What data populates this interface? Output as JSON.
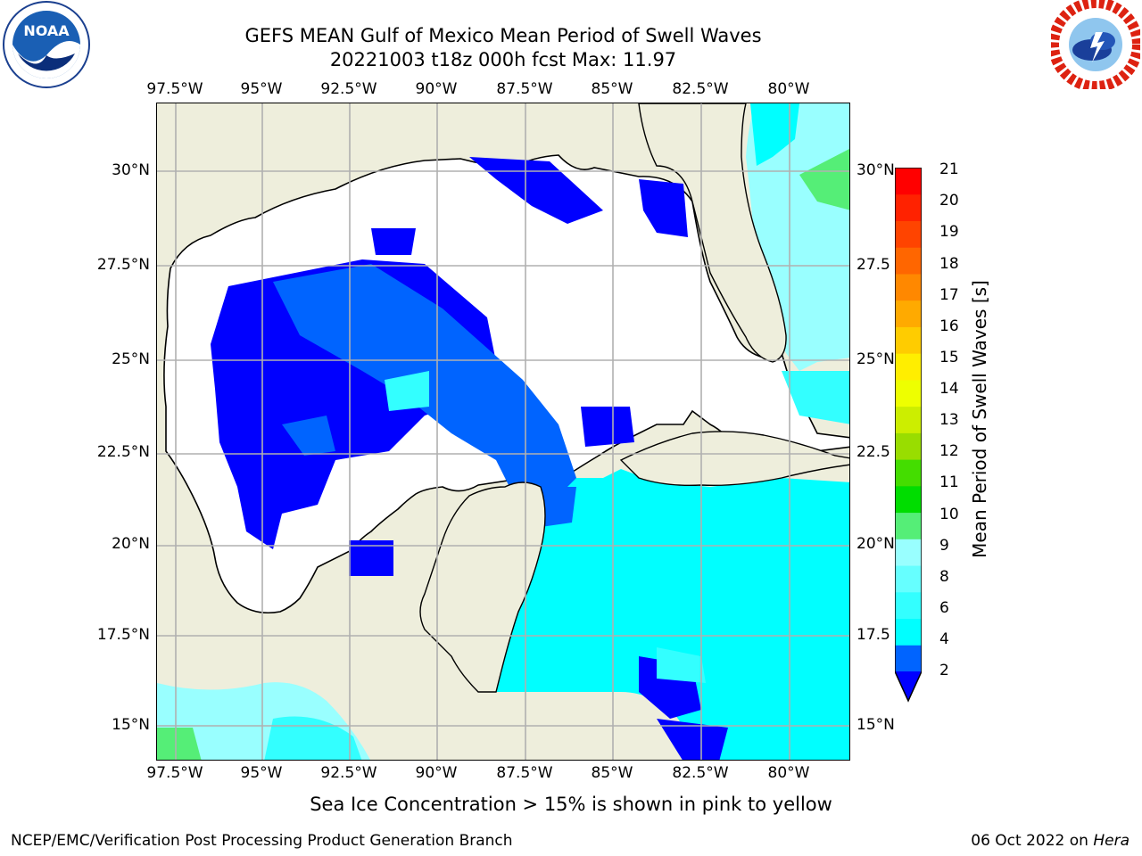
{
  "title": {
    "line1": "GEFS MEAN Gulf of Mexico Mean Period of Swell Waves",
    "line2": "20221003 t18z 000h fcst   Max: 11.97"
  },
  "logos": {
    "left": {
      "name": "NOAA",
      "text": "NOAA",
      "ring_text": "NATIONAL OCEANIC AND ATMOSPHERIC ADMINISTRATION · U.S. DEPARTMENT OF COMMERCE"
    },
    "right": {
      "name": "National Weather Service",
      "ring_text": "NATIONAL WEATHER SERVICE"
    }
  },
  "map": {
    "lon_ticks": [
      "97.5°W",
      "95°W",
      "92.5°W",
      "90°W",
      "87.5°W",
      "85°W",
      "82.5°W",
      "80°W"
    ],
    "lat_ticks_left": [
      "30°N",
      "27.5°N",
      "25°N",
      "22.5°N",
      "20°N",
      "17.5°N",
      "15°N"
    ],
    "lat_ticks_right": [
      "30°N",
      "27.5",
      "25°N",
      "22.5",
      "20°N",
      "17.5",
      "15°N"
    ],
    "land_color": "#eeeedc",
    "grid_color": "#b0b0b0"
  },
  "colorbar": {
    "label": "Mean Period of Swell Waves [s]",
    "ticks": [
      "21",
      "20",
      "19",
      "18",
      "17",
      "16",
      "15",
      "14",
      "13",
      "12",
      "11",
      "10",
      "9",
      "8",
      "6",
      "4",
      "2"
    ],
    "colors_bottom_to_top": [
      "#0000ff",
      "#0064ff",
      "#00ffff",
      "#33ffff",
      "#66ffff",
      "#99ffff",
      "#55ee77",
      "#00dd00",
      "#44dd00",
      "#99dd00",
      "#ccee00",
      "#eeff00",
      "#ffee00",
      "#ffcc00",
      "#ffaa00",
      "#ff8800",
      "#ff6600",
      "#ff4400",
      "#ff2200",
      "#ff0000"
    ],
    "extend": "min"
  },
  "note": "Sea Ice Concentration > 15% is shown in pink to yellow",
  "footer": {
    "left": "NCEP/EMC/Verification Post Processing Product Generation Branch",
    "right_date": "06 Oct 2022 on ",
    "right_machine": "Hera"
  }
}
